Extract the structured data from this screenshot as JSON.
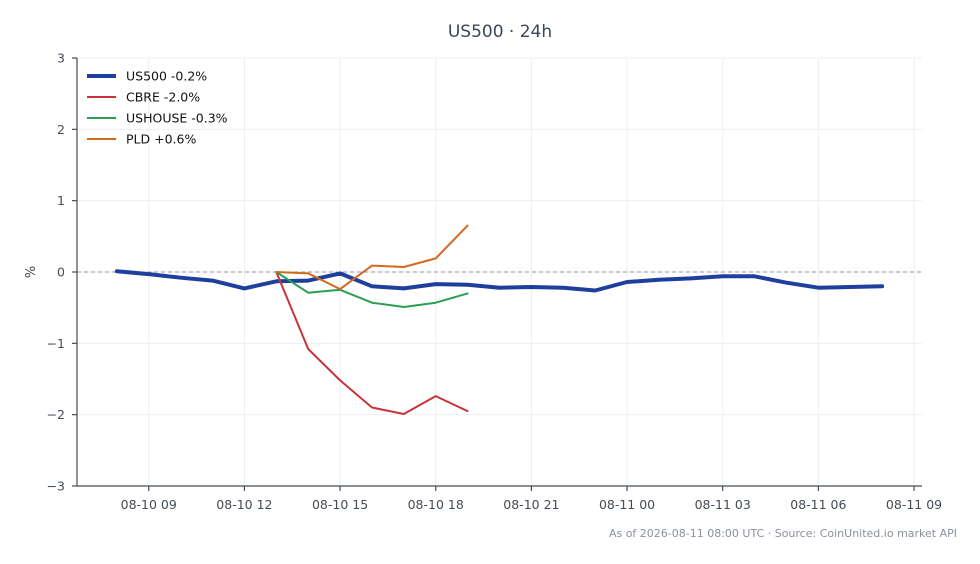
{
  "chart_data": {
    "type": "line",
    "title": "US500 · 24h",
    "xlabel": "",
    "ylabel": "%",
    "ylim": [
      -3,
      3
    ],
    "yticks": [
      -3,
      -2,
      -1,
      0,
      1,
      2,
      3
    ],
    "ytick_labels": [
      "−3",
      "−2",
      "−1",
      "0",
      "1",
      "2",
      "3"
    ],
    "xlim": [
      "2026-08-10 06:45",
      "2026-08-11 09:15"
    ],
    "xticks": [
      "2026-08-10 09:00",
      "2026-08-10 12:00",
      "2026-08-10 15:00",
      "2026-08-10 18:00",
      "2026-08-10 21:00",
      "2026-08-11 00:00",
      "2026-08-11 03:00",
      "2026-08-11 06:00",
      "2026-08-11 09:00"
    ],
    "xtick_labels": [
      "08-10 09",
      "08-10 12",
      "08-10 15",
      "08-10 18",
      "08-10 21",
      "08-11 00",
      "08-11 03",
      "08-11 06",
      "08-11 09"
    ],
    "grid": true,
    "baseline": 0,
    "legend_position": "top-left",
    "series": [
      {
        "name": "US500 -0.2%",
        "color": "#1f3f9e",
        "width": 4,
        "x": [
          "2026-08-10 08:00",
          "2026-08-10 09:00",
          "2026-08-10 10:00",
          "2026-08-10 11:00",
          "2026-08-10 12:00",
          "2026-08-10 13:00",
          "2026-08-10 14:00",
          "2026-08-10 15:00",
          "2026-08-10 16:00",
          "2026-08-10 17:00",
          "2026-08-10 18:00",
          "2026-08-10 19:00",
          "2026-08-10 20:00",
          "2026-08-10 21:00",
          "2026-08-10 22:00",
          "2026-08-10 23:00",
          "2026-08-11 00:00",
          "2026-08-11 01:00",
          "2026-08-11 02:00",
          "2026-08-11 03:00",
          "2026-08-11 04:00",
          "2026-08-11 05:00",
          "2026-08-11 06:00",
          "2026-08-11 07:00",
          "2026-08-11 08:00"
        ],
        "y": [
          0.01,
          -0.03,
          -0.08,
          -0.12,
          -0.23,
          -0.13,
          -0.12,
          -0.02,
          -0.2,
          -0.23,
          -0.17,
          -0.18,
          -0.22,
          -0.21,
          -0.22,
          -0.26,
          -0.14,
          -0.11,
          -0.09,
          -0.06,
          -0.06,
          -0.15,
          -0.22,
          -0.21,
          -0.2
        ]
      },
      {
        "name": "CBRE -2.0%",
        "color": "#c8333a",
        "width": 2,
        "x": [
          "2026-08-10 13:00",
          "2026-08-10 14:00",
          "2026-08-10 15:00",
          "2026-08-10 16:00",
          "2026-08-10 17:00",
          "2026-08-10 18:00",
          "2026-08-10 19:00"
        ],
        "y": [
          0.0,
          -1.08,
          -1.52,
          -1.9,
          -1.99,
          -1.74,
          -1.95
        ]
      },
      {
        "name": "USHOUSE -0.3%",
        "color": "#2a9e52",
        "width": 2,
        "x": [
          "2026-08-10 13:00",
          "2026-08-10 14:00",
          "2026-08-10 15:00",
          "2026-08-10 16:00",
          "2026-08-10 17:00",
          "2026-08-10 18:00",
          "2026-08-10 19:00"
        ],
        "y": [
          0.0,
          -0.29,
          -0.25,
          -0.43,
          -0.49,
          -0.43,
          -0.3
        ]
      },
      {
        "name": "PLD +0.6%",
        "color": "#d2691e",
        "width": 2,
        "x": [
          "2026-08-10 13:00",
          "2026-08-10 14:00",
          "2026-08-10 15:00",
          "2026-08-10 16:00",
          "2026-08-10 17:00",
          "2026-08-10 18:00",
          "2026-08-10 19:00"
        ],
        "y": [
          0.0,
          -0.02,
          -0.24,
          0.09,
          0.07,
          0.19,
          0.65
        ]
      }
    ],
    "footer": "As of 2026-08-11 08:00 UTC · Source: CoinUnited.io market API"
  }
}
